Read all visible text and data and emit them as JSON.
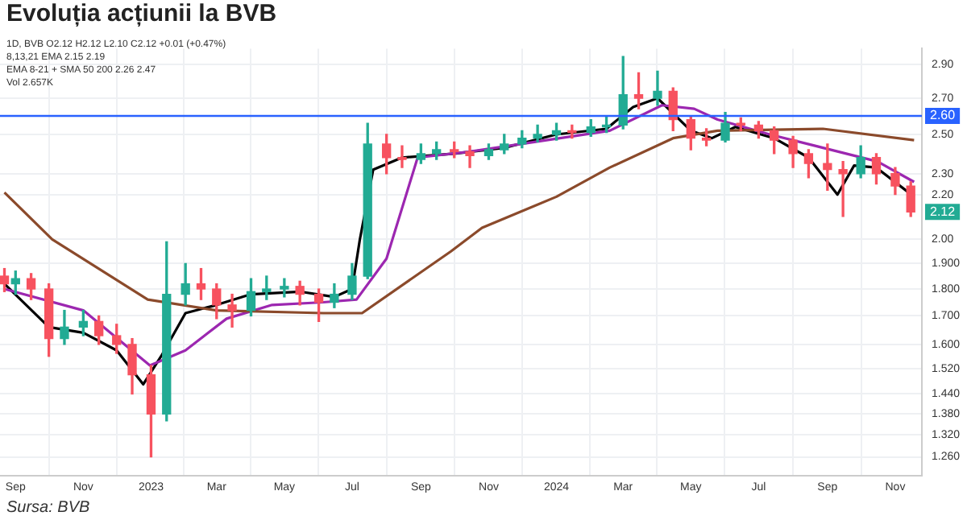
{
  "chart_data": {
    "type": "candlestick",
    "title": "Evoluția acțiunii la BVB",
    "annotations": [
      "1D, BVB O2.12 H2.12 L2.10 C2.12 +0.01 (+0.47%)",
      "8,13,21 EMA 2.15 2.19",
      "EMA 8-21 + SMA 50 200 2.26 2.47",
      "Vol 2.657K",
      "Sursa: BVB",
      {
        "text": "2.12",
        "y": 2.12
      }
    ],
    "x": [
      "2022-08-22",
      "2022-09-01",
      "2022-09-15",
      "2022-10-01",
      "2022-10-15",
      "2022-11-01",
      "2022-11-15",
      "2022-12-01",
      "2022-12-15",
      "2023-01-01",
      "2023-01-15",
      "2023-02-01",
      "2023-02-15",
      "2023-03-01",
      "2023-03-15",
      "2023-04-01",
      "2023-04-15",
      "2023-05-01",
      "2023-05-15",
      "2023-06-01",
      "2023-06-15",
      "2023-07-01",
      "2023-07-15",
      "2023-08-01",
      "2023-08-15",
      "2023-09-01",
      "2023-09-15",
      "2023-10-01",
      "2023-10-15",
      "2023-11-01",
      "2023-11-15",
      "2023-12-01",
      "2023-12-15",
      "2024-01-01",
      "2024-01-15",
      "2024-02-01",
      "2024-02-15",
      "2024-03-01",
      "2024-03-15",
      "2024-04-01",
      "2024-04-15",
      "2024-05-01",
      "2024-05-15",
      "2024-06-01",
      "2024-06-15",
      "2024-07-01",
      "2024-07-15",
      "2024-08-01",
      "2024-08-15",
      "2024-09-01",
      "2024-09-15",
      "2024-10-01",
      "2024-10-15",
      "2024-11-01",
      "2024-11-15"
    ],
    "ohlc": [
      [
        1.85,
        1.88,
        1.79,
        1.82
      ],
      [
        1.82,
        1.87,
        1.78,
        1.84
      ],
      [
        1.84,
        1.86,
        1.76,
        1.8
      ],
      [
        1.8,
        1.82,
        1.56,
        1.62
      ],
      [
        1.62,
        1.72,
        1.6,
        1.66
      ],
      [
        1.66,
        1.72,
        1.63,
        1.68
      ],
      [
        1.68,
        1.7,
        1.6,
        1.63
      ],
      [
        1.63,
        1.67,
        1.57,
        1.6
      ],
      [
        1.6,
        1.62,
        1.44,
        1.5
      ],
      [
        1.5,
        1.53,
        1.26,
        1.38
      ],
      [
        1.38,
        1.99,
        1.36,
        1.78
      ],
      [
        1.78,
        1.9,
        1.74,
        1.82
      ],
      [
        1.82,
        1.88,
        1.76,
        1.8
      ],
      [
        1.8,
        1.82,
        1.69,
        1.74
      ],
      [
        1.74,
        1.78,
        1.66,
        1.72
      ],
      [
        1.72,
        1.84,
        1.7,
        1.79
      ],
      [
        1.79,
        1.85,
        1.76,
        1.8
      ],
      [
        1.8,
        1.84,
        1.77,
        1.81
      ],
      [
        1.81,
        1.83,
        1.74,
        1.78
      ],
      [
        1.78,
        1.8,
        1.68,
        1.75
      ],
      [
        1.75,
        1.82,
        1.73,
        1.78
      ],
      [
        1.78,
        1.9,
        1.76,
        1.85
      ],
      [
        1.85,
        2.56,
        1.84,
        2.45
      ],
      [
        2.45,
        2.5,
        2.3,
        2.38
      ],
      [
        2.38,
        2.44,
        2.33,
        2.37
      ],
      [
        2.37,
        2.45,
        2.35,
        2.4
      ],
      [
        2.4,
        2.46,
        2.37,
        2.42
      ],
      [
        2.42,
        2.46,
        2.38,
        2.41
      ],
      [
        2.41,
        2.44,
        2.33,
        2.39
      ],
      [
        2.39,
        2.45,
        2.37,
        2.42
      ],
      [
        2.42,
        2.5,
        2.4,
        2.45
      ],
      [
        2.45,
        2.52,
        2.43,
        2.48
      ],
      [
        2.48,
        2.55,
        2.46,
        2.5
      ],
      [
        2.5,
        2.56,
        2.47,
        2.52
      ],
      [
        2.52,
        2.55,
        2.48,
        2.51
      ],
      [
        2.51,
        2.58,
        2.49,
        2.54
      ],
      [
        2.54,
        2.6,
        2.51,
        2.55
      ],
      [
        2.55,
        2.95,
        2.53,
        2.72
      ],
      [
        2.72,
        2.85,
        2.64,
        2.7
      ],
      [
        2.7,
        2.86,
        2.66,
        2.74
      ],
      [
        2.74,
        2.76,
        2.52,
        2.58
      ],
      [
        2.58,
        2.6,
        2.42,
        2.48
      ],
      [
        2.48,
        2.53,
        2.44,
        2.47
      ],
      [
        2.47,
        2.62,
        2.46,
        2.56
      ],
      [
        2.56,
        2.59,
        2.52,
        2.55
      ],
      [
        2.55,
        2.57,
        2.48,
        2.52
      ],
      [
        2.52,
        2.54,
        2.4,
        2.47
      ],
      [
        2.47,
        2.49,
        2.33,
        2.4
      ],
      [
        2.4,
        2.42,
        2.28,
        2.35
      ],
      [
        2.35,
        2.45,
        2.22,
        2.32
      ],
      [
        2.32,
        2.36,
        2.1,
        2.3
      ],
      [
        2.3,
        2.44,
        2.28,
        2.38
      ],
      [
        2.38,
        2.4,
        2.25,
        2.3
      ],
      [
        2.3,
        2.33,
        2.2,
        2.24
      ],
      [
        2.24,
        2.26,
        2.1,
        2.12
      ]
    ],
    "colors": [
      "#f7525f",
      "#22ab94",
      "#f7525f",
      "#f7525f",
      "#22ab94",
      "#22ab94",
      "#f7525f",
      "#f7525f",
      "#f7525f",
      "#f7525f",
      "#22ab94",
      "#22ab94",
      "#f7525f",
      "#f7525f",
      "#f7525f",
      "#22ab94",
      "#22ab94",
      "#22ab94",
      "#f7525f",
      "#f7525f",
      "#22ab94",
      "#22ab94",
      "#22ab94",
      "#f7525f",
      "#f7525f",
      "#22ab94",
      "#22ab94",
      "#f7525f",
      "#f7525f",
      "#22ab94",
      "#22ab94",
      "#22ab94",
      "#22ab94",
      "#22ab94",
      "#f7525f",
      "#22ab94",
      "#22ab94",
      "#22ab94",
      "#f7525f",
      "#22ab94",
      "#f7525f",
      "#f7525f",
      "#f7525f",
      "#22ab94",
      "#f7525f",
      "#f7525f",
      "#f7525f",
      "#f7525f",
      "#f7525f",
      "#f7525f",
      "#f7525f",
      "#22ab94",
      "#f7525f",
      "#f7525f",
      "#f7525f"
    ],
    "series": [
      {
        "type": "line",
        "color": "#8b4a2b",
        "x": [
          "2022-08-22",
          "2022-10-04",
          "2022-12-29",
          "2023-03-01",
          "2023-06-05",
          "2023-07-10",
          "2023-09-28",
          "2023-10-26",
          "2024-01-01",
          "2024-02-18",
          "2024-04-15",
          "2024-05-25",
          "2024-08-28",
          "2024-11-18"
        ],
        "values": [
          2.21,
          2.0,
          1.76,
          1.72,
          1.71,
          1.71,
          1.95,
          2.05,
          2.19,
          2.33,
          2.48,
          2.52,
          2.53,
          2.47
        ]
      },
      {
        "type": "line",
        "color": "#9c27b0",
        "x": [
          "2022-08-22",
          "2022-11-01",
          "2022-12-31",
          "2023-02-01",
          "2023-03-10",
          "2023-04-20",
          "2023-06-05",
          "2023-07-05",
          "2023-08-01",
          "2023-08-29",
          "2023-10-15",
          "2024-02-18",
          "2024-04-05",
          "2024-05-04",
          "2024-05-25",
          "2024-07-11",
          "2024-08-28",
          "2024-10-16",
          "2024-11-18"
        ],
        "values": [
          1.8,
          1.72,
          1.53,
          1.58,
          1.69,
          1.74,
          1.75,
          1.76,
          1.92,
          2.38,
          2.41,
          2.52,
          2.66,
          2.64,
          2.58,
          2.5,
          2.43,
          2.36,
          2.26
        ]
      },
      {
        "type": "line",
        "color": "#000000",
        "x": [
          "2022-08-22",
          "2022-10-01",
          "2022-11-01",
          "2022-12-01",
          "2022-12-25",
          "2023-01-10",
          "2023-02-01",
          "2023-03-01",
          "2023-04-01",
          "2023-05-15",
          "2023-06-15",
          "2023-07-01",
          "2023-07-08",
          "2023-07-20",
          "2023-08-15",
          "2023-10-01",
          "2023-11-15",
          "2024-01-01",
          "2024-02-15",
          "2024-03-10",
          "2024-04-01",
          "2024-05-01",
          "2024-05-20",
          "2024-06-10",
          "2024-07-15",
          "2024-08-15",
          "2024-09-10",
          "2024-09-25",
          "2024-10-15",
          "2024-11-18"
        ],
        "values": [
          1.82,
          1.66,
          1.64,
          1.58,
          1.47,
          1.56,
          1.71,
          1.74,
          1.78,
          1.79,
          1.77,
          1.8,
          2.0,
          2.32,
          2.38,
          2.4,
          2.43,
          2.5,
          2.53,
          2.65,
          2.7,
          2.52,
          2.48,
          2.54,
          2.48,
          2.38,
          2.2,
          2.34,
          2.33,
          2.19
        ]
      }
    ],
    "xlim": [
      "2022-08-18",
      "2024-11-25"
    ],
    "xticks": [
      {
        "value": "2022-09-01",
        "label": "Sep"
      },
      {
        "value": "2022-11-01",
        "label": "Nov"
      },
      {
        "value": "2023-01-01",
        "label": "2023"
      },
      {
        "value": "2023-03-01",
        "label": "Mar"
      },
      {
        "value": "2023-05-01",
        "label": "May"
      },
      {
        "value": "2023-07-01",
        "label": "Jul"
      },
      {
        "value": "2023-09-01",
        "label": "Sep"
      },
      {
        "value": "2023-11-01",
        "label": "Nov"
      },
      {
        "value": "2024-01-01",
        "label": "2024"
      },
      {
        "value": "2024-03-01",
        "label": "Mar"
      },
      {
        "value": "2024-05-01",
        "label": "May"
      },
      {
        "value": "2024-07-01",
        "label": "Jul"
      },
      {
        "value": "2024-09-01",
        "label": "Sep"
      },
      {
        "value": "2024-11-01",
        "label": "Nov"
      }
    ],
    "ylim": [
      1.21,
      3.0
    ],
    "log": "y",
    "yticks": [
      {
        "value": 1.26,
        "label": "1.260"
      },
      {
        "value": 1.32,
        "label": "1.320"
      },
      {
        "value": 1.38,
        "label": "1.380"
      },
      {
        "value": 1.44,
        "label": "1.440"
      },
      {
        "value": 1.52,
        "label": "1.520"
      },
      {
        "value": 1.6,
        "label": "1.600"
      },
      {
        "value": 1.7,
        "label": "1.700"
      },
      {
        "value": 1.8,
        "label": "1.800"
      },
      {
        "value": 1.9,
        "label": "1.900"
      },
      {
        "value": 2.0,
        "label": "2.00"
      },
      {
        "value": 2.2,
        "label": "2.20"
      },
      {
        "value": 2.3,
        "label": "2.30"
      },
      {
        "value": 2.5,
        "label": "2.50"
      },
      {
        "value": 2.7,
        "label": "2.70"
      },
      {
        "value": 2.9,
        "label": "2.90"
      }
    ],
    "grid": true,
    "ref_lines": [
      {
        "axis": "y",
        "value": 2.6,
        "label": "2.60",
        "color": "#2962ff"
      }
    ]
  }
}
